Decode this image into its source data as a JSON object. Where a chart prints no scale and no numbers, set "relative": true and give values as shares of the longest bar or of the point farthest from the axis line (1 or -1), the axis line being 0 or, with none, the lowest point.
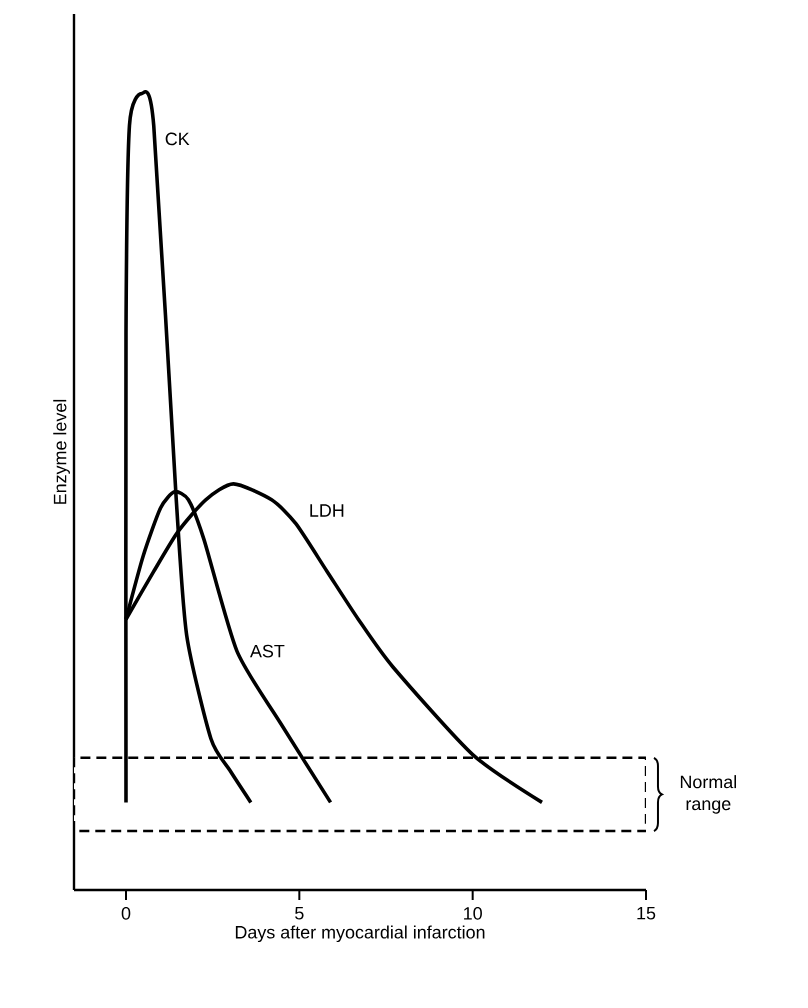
{
  "chart_data": {
    "type": "line",
    "relative": true,
    "xlabel": "Days after myocardial infarction",
    "ylabel": "Enzyme level",
    "xlim": [
      -1.5,
      15
    ],
    "xticks": [
      0,
      5,
      10,
      15
    ],
    "grid": false,
    "legend": false,
    "marker": "none",
    "line_style": "solid",
    "series": [
      {
        "name": "CK",
        "color": "#000000",
        "x": [
          0,
          0,
          0.1,
          0.45,
          0.8,
          1.45,
          1.75,
          2.45,
          3.0,
          3.6
        ],
        "values": [
          0.11,
          0.7,
          0.96,
          1.0,
          0.96,
          0.49,
          0.32,
          0.19,
          0.15,
          0.11
        ]
      },
      {
        "name": "AST",
        "color": "#000000",
        "x": [
          0,
          0.5,
          1.0,
          1.4,
          1.8,
          2.25,
          3.2,
          4.45,
          5.9
        ],
        "values": [
          0.34,
          0.42,
          0.48,
          0.5,
          0.49,
          0.44,
          0.3,
          0.21,
          0.11
        ]
      },
      {
        "name": "LDH",
        "color": "#000000",
        "x": [
          0,
          0.8,
          1.5,
          2.3,
          3.1,
          4.2,
          4.9,
          5.8,
          6.7,
          7.7,
          10,
          12
        ],
        "values": [
          0.34,
          0.4,
          0.45,
          0.49,
          0.51,
          0.49,
          0.46,
          0.4,
          0.34,
          0.28,
          0.17,
          0.11
        ]
      }
    ],
    "bands": [
      {
        "axis": "y",
        "from": 0.074,
        "to": 0.166,
        "label": "Normal range",
        "color": "#ffffff"
      }
    ]
  }
}
